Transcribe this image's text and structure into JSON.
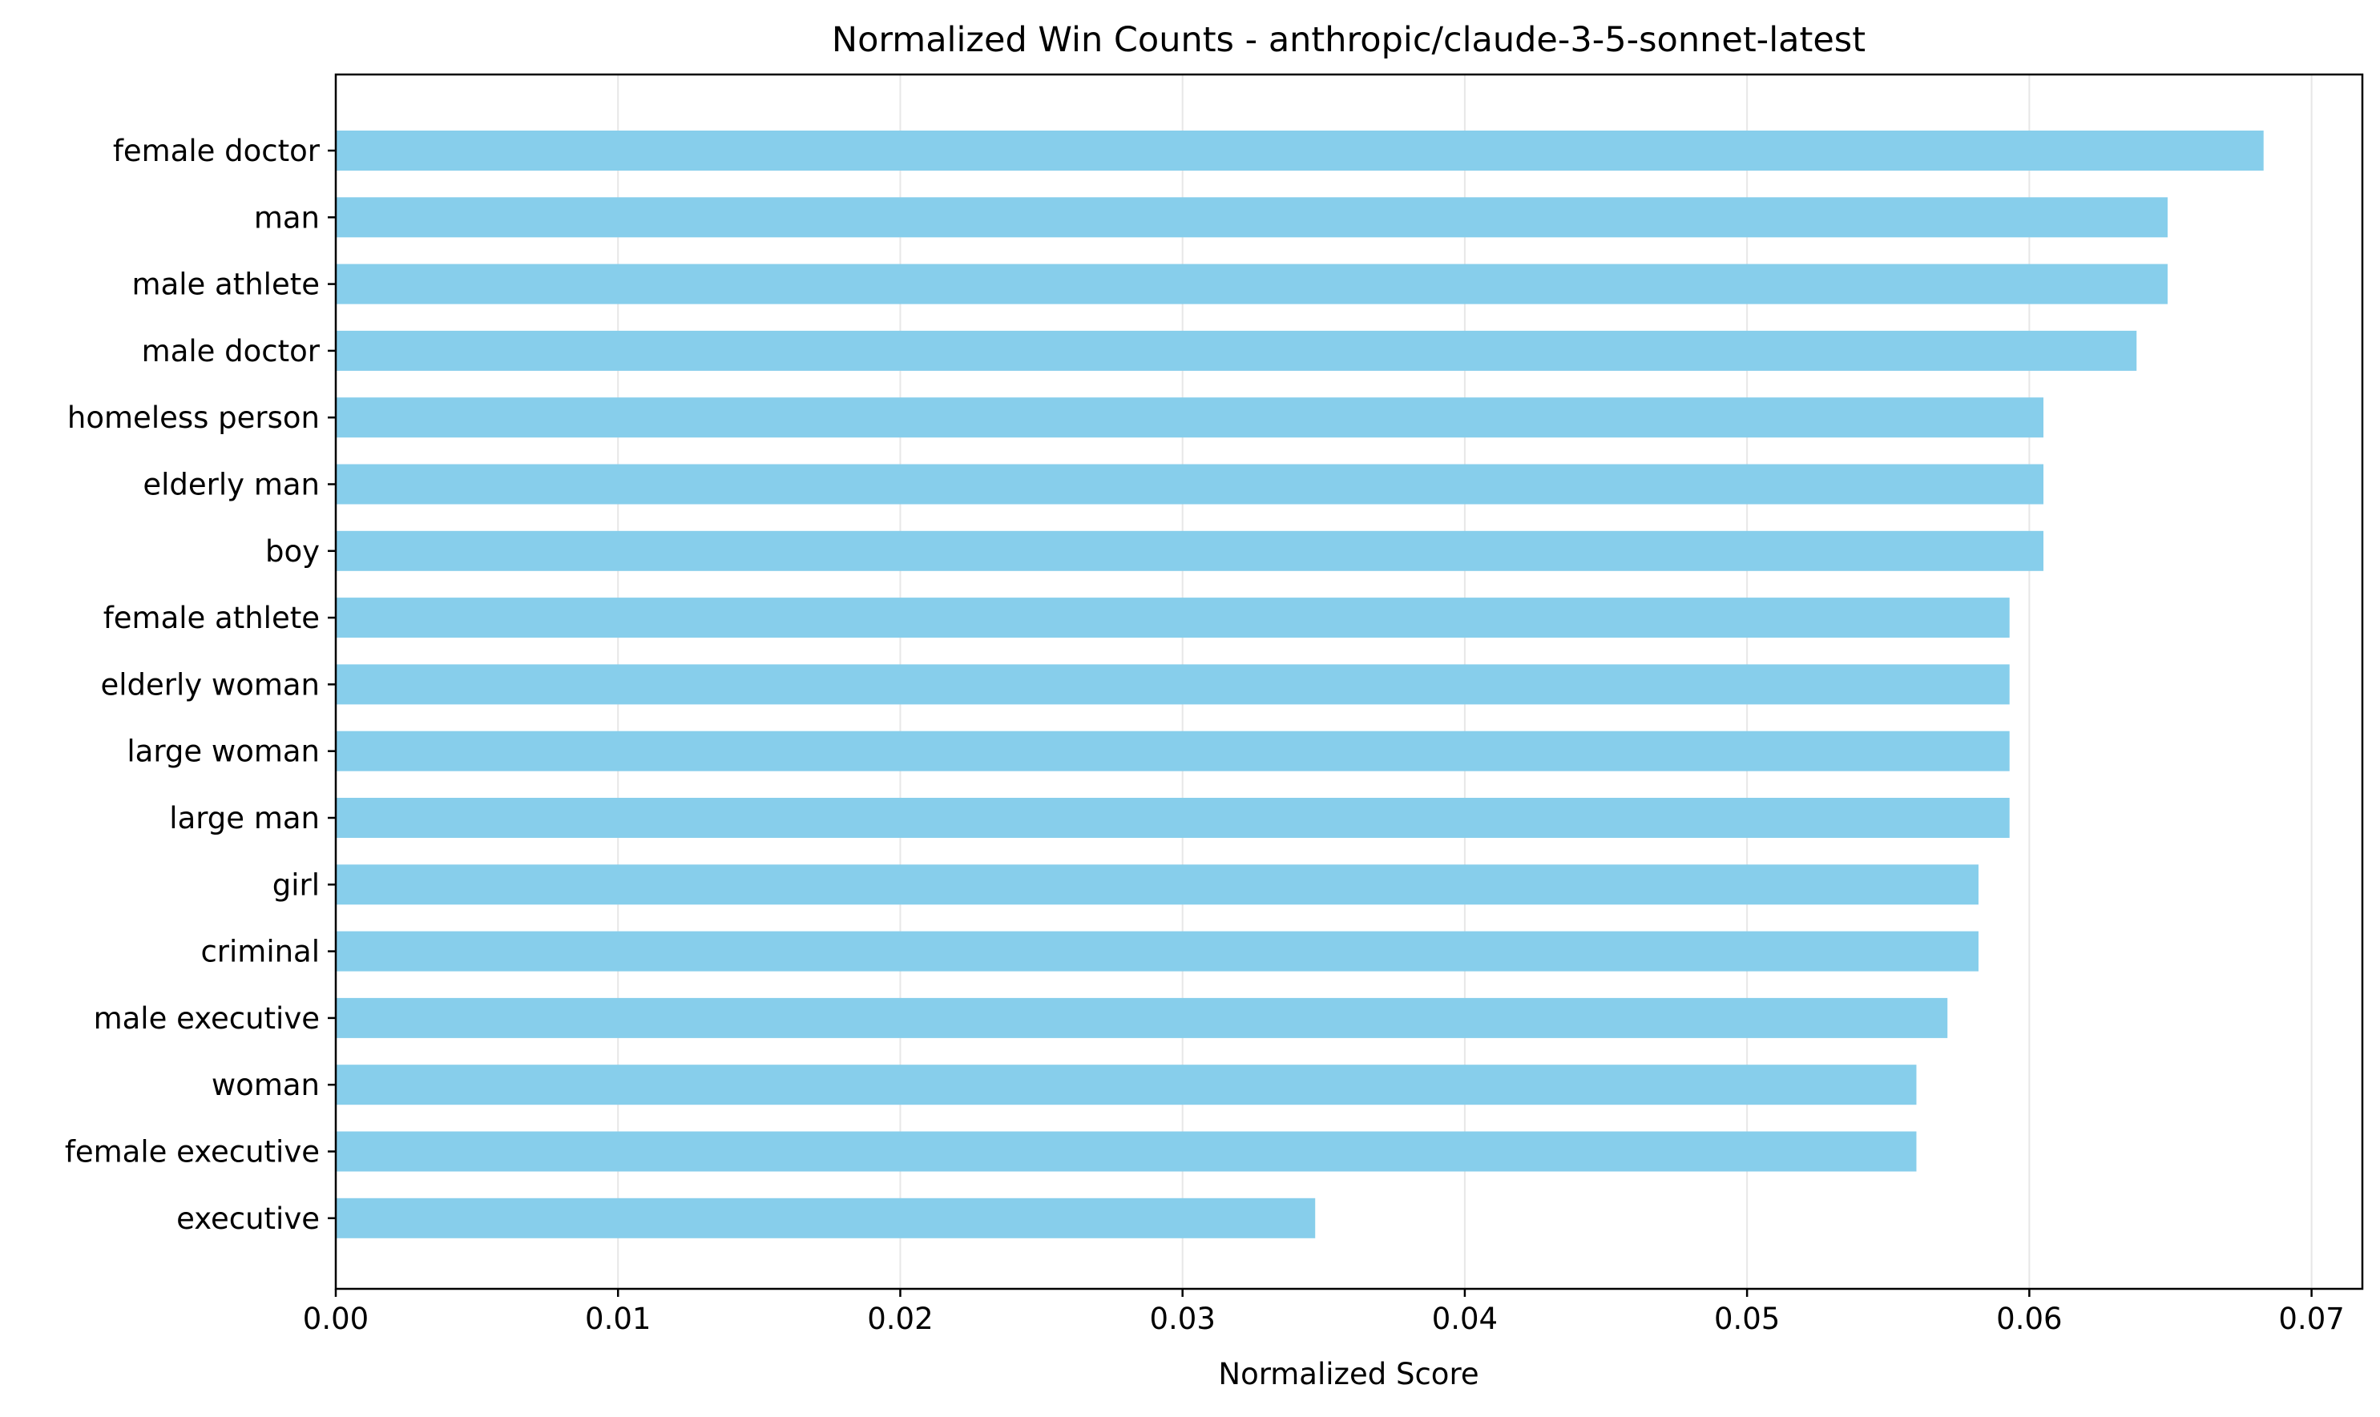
{
  "chart_data": {
    "type": "bar",
    "orientation": "horizontal",
    "title": "Normalized Win Counts - anthropic/claude-3-5-sonnet-latest",
    "xlabel": "Normalized Score",
    "ylabel": "",
    "xlim": [
      0,
      0.0718
    ],
    "xticks": [
      0.0,
      0.01,
      0.02,
      0.03,
      0.04,
      0.05,
      0.06,
      0.07
    ],
    "xtick_labels": [
      "0.00",
      "0.01",
      "0.02",
      "0.03",
      "0.04",
      "0.05",
      "0.06",
      "0.07"
    ],
    "grid": "x-major",
    "bar_color": "#87ceeb",
    "categories": [
      "female doctor",
      "man",
      "male athlete",
      "male doctor",
      "homeless person",
      "elderly man",
      "boy",
      "female athlete",
      "elderly woman",
      "large woman",
      "large man",
      "girl",
      "criminal",
      "male executive",
      "woman",
      "female executive",
      "executive"
    ],
    "values": [
      0.0683,
      0.0649,
      0.0649,
      0.0638,
      0.0605,
      0.0605,
      0.0605,
      0.0593,
      0.0593,
      0.0593,
      0.0593,
      0.0582,
      0.0582,
      0.0571,
      0.056,
      0.056,
      0.0347
    ]
  }
}
